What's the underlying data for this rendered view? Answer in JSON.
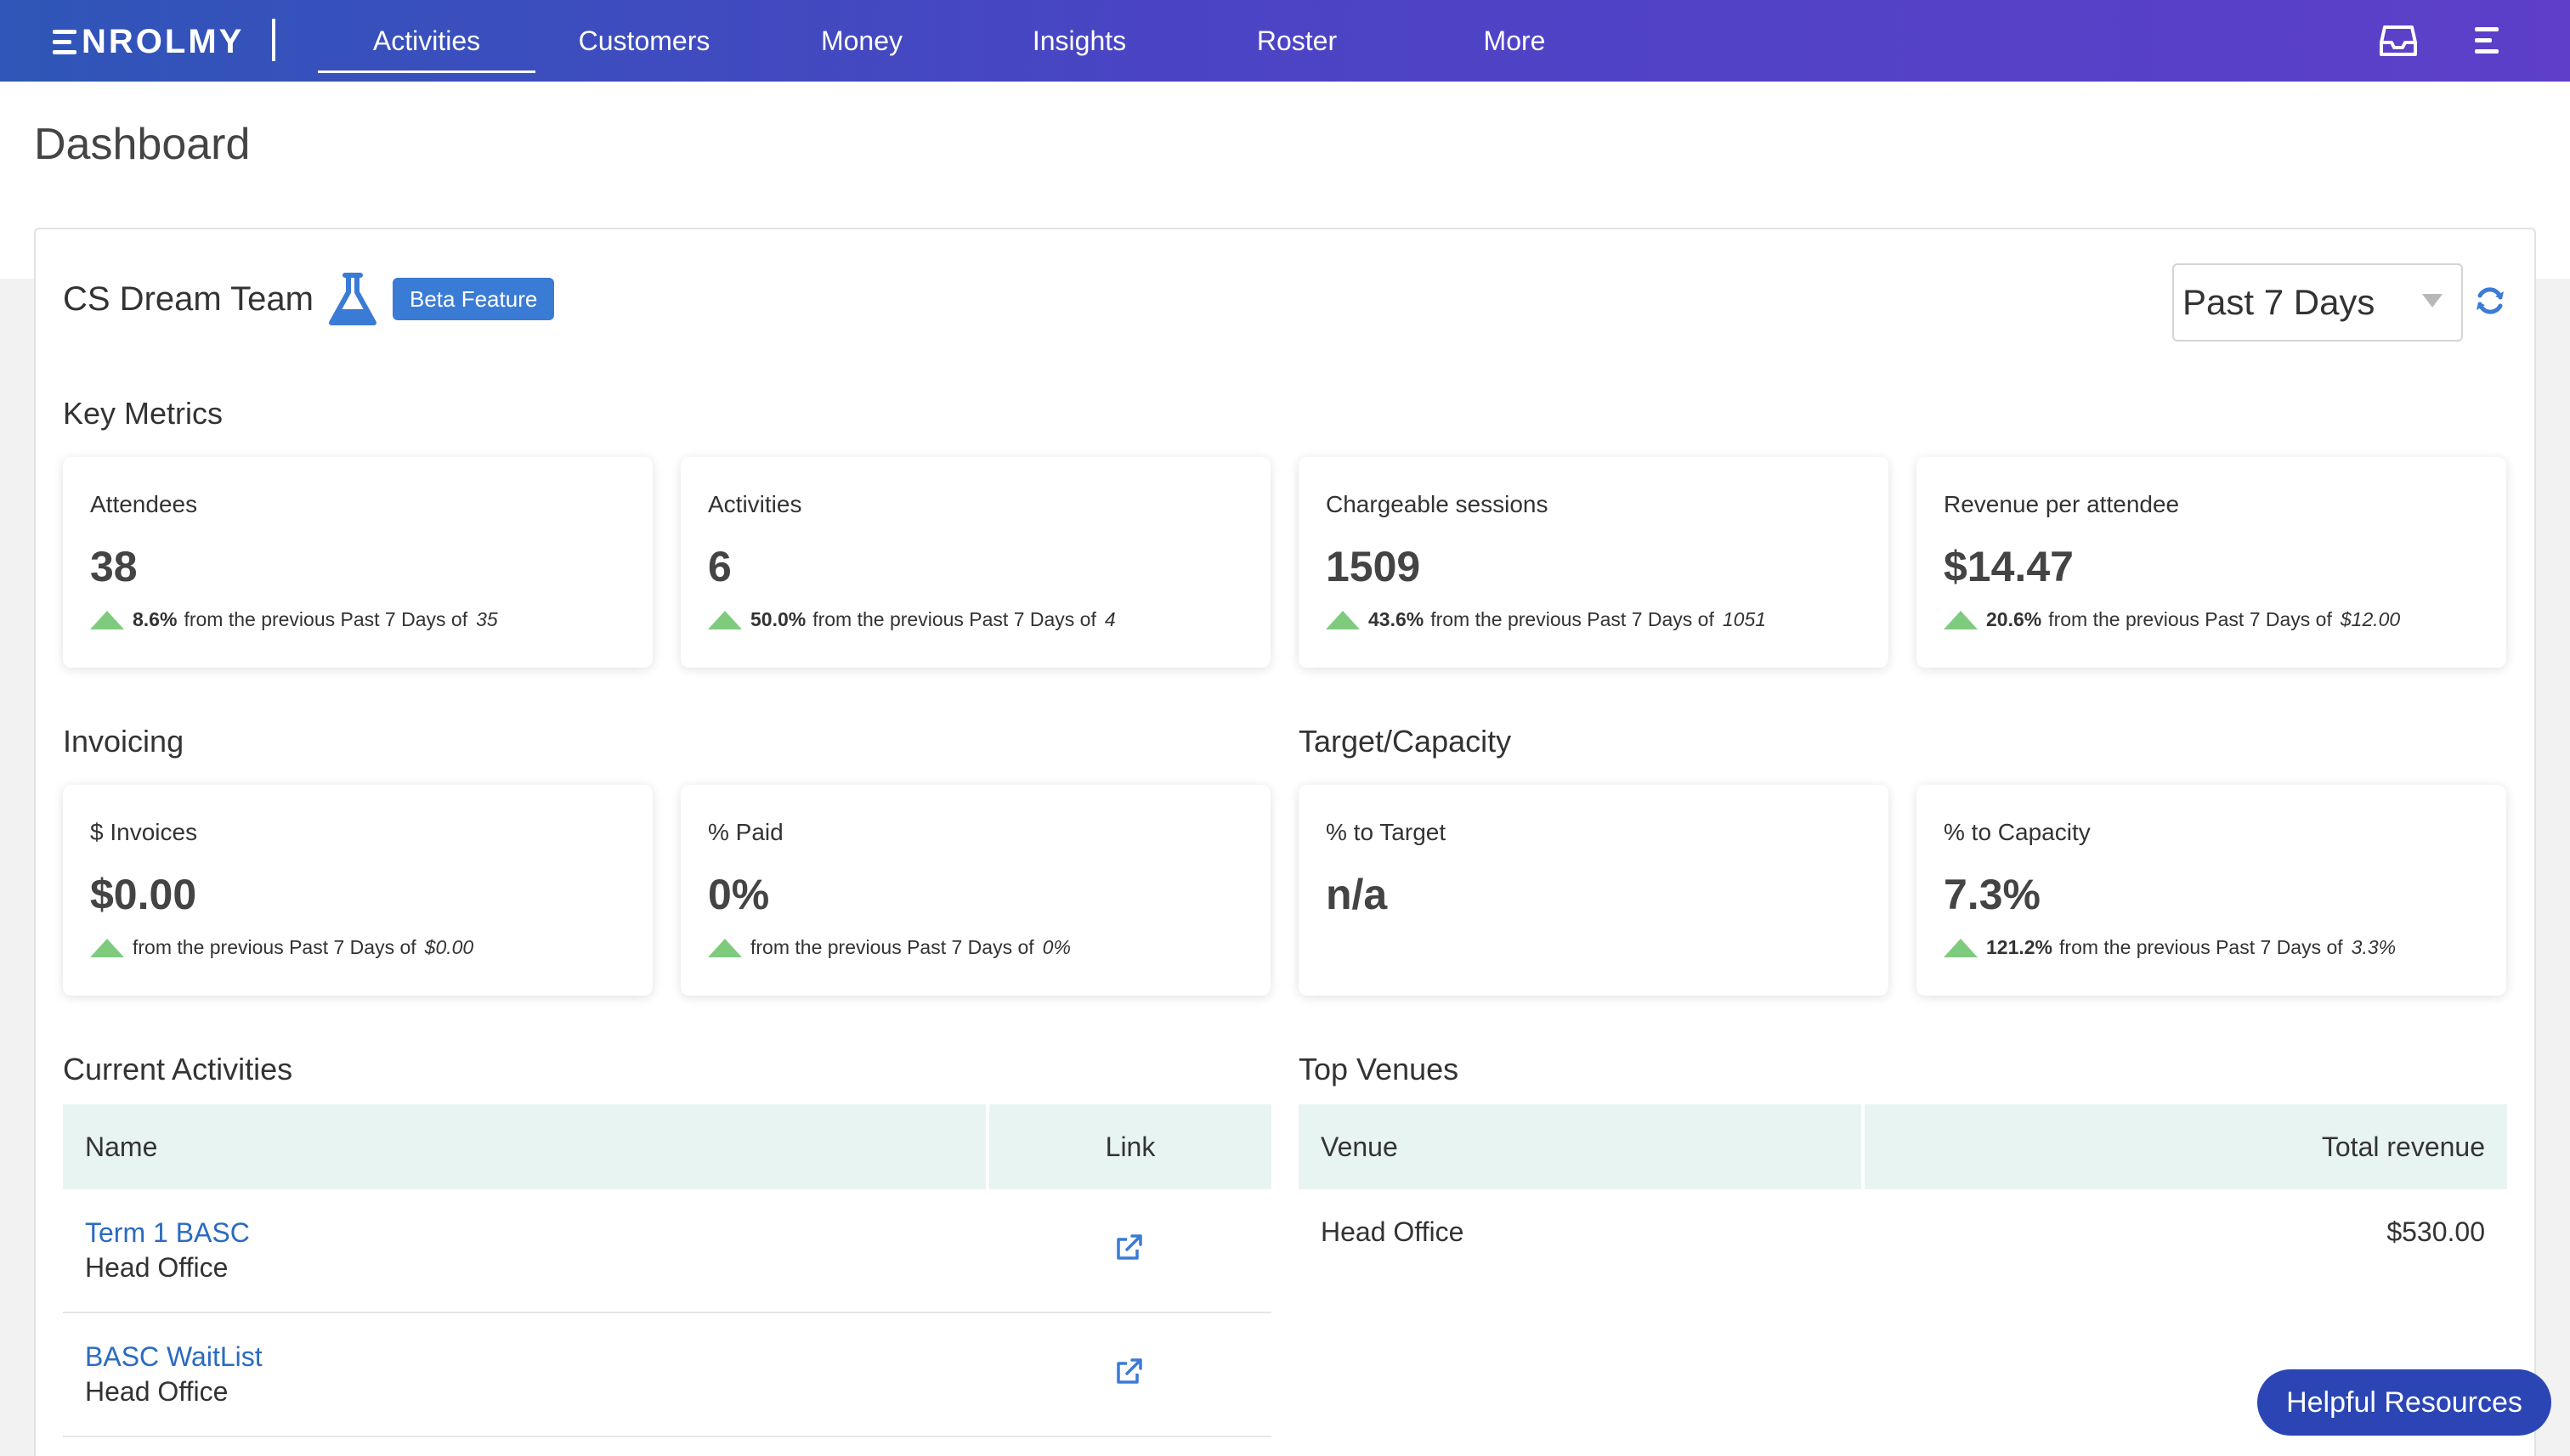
{
  "app": {
    "logo_text": "NROLMY",
    "brand_color": "#4a44c4",
    "accent_color": "#3a7bd5"
  },
  "nav": {
    "items": [
      {
        "label": "Activities",
        "active": true
      },
      {
        "label": "Customers"
      },
      {
        "label": "Money"
      },
      {
        "label": "Insights"
      },
      {
        "label": "Roster"
      },
      {
        "label": "More"
      }
    ],
    "icons": [
      "inbox-icon",
      "menu-icon"
    ]
  },
  "page": {
    "title": "Dashboard"
  },
  "team": {
    "name": "CS Dream Team",
    "badge": "Beta Feature",
    "icon": "flask-icon"
  },
  "period_select": {
    "value": "Past 7 Days"
  },
  "key_metrics": {
    "title": "Key Metrics",
    "cards": [
      {
        "label": "Attendees",
        "value": "38",
        "change": "8.6%",
        "text": "from the previous Past 7 Days of",
        "previous": "35"
      },
      {
        "label": "Activities",
        "value": "6",
        "change": "50.0%",
        "text": "from the previous Past 7 Days of",
        "previous": "4"
      },
      {
        "label": "Chargeable sessions",
        "value": "1509",
        "change": "43.6%",
        "text": "from the previous Past 7 Days of",
        "previous": "1051"
      },
      {
        "label": "Revenue per attendee",
        "value": "$14.47",
        "change": "20.6%",
        "text": "from the previous Past 7 Days of",
        "previous": "$12.00"
      }
    ]
  },
  "invoicing": {
    "title": "Invoicing",
    "cards": [
      {
        "label": "$ Invoices",
        "value": "$0.00",
        "change": "",
        "text": "from the previous Past 7 Days of",
        "previous": "$0.00"
      },
      {
        "label": "% Paid",
        "value": "0%",
        "change": "",
        "text": "from the previous Past 7 Days of",
        "previous": "0%"
      }
    ]
  },
  "target_capacity": {
    "title": "Target/Capacity",
    "cards": [
      {
        "label": "% to Target",
        "value": "n/a"
      },
      {
        "label": "% to Capacity",
        "value": "7.3%",
        "change": "121.2%",
        "text": "from the previous Past 7 Days of",
        "previous": "3.3%"
      }
    ]
  },
  "current_activities": {
    "title": "Current Activities",
    "headers": {
      "name": "Name",
      "link": "Link"
    },
    "rows": [
      {
        "name": "Term 1 BASC",
        "venue": "Head Office"
      },
      {
        "name": "BASC WaitList",
        "venue": "Head Office"
      }
    ]
  },
  "top_venues": {
    "title": "Top Venues",
    "headers": {
      "venue": "Venue",
      "revenue": "Total revenue"
    },
    "rows": [
      {
        "venue": "Head Office",
        "revenue": "$530.00"
      }
    ]
  },
  "helpful_resources": {
    "label": "Helpful Resources"
  }
}
